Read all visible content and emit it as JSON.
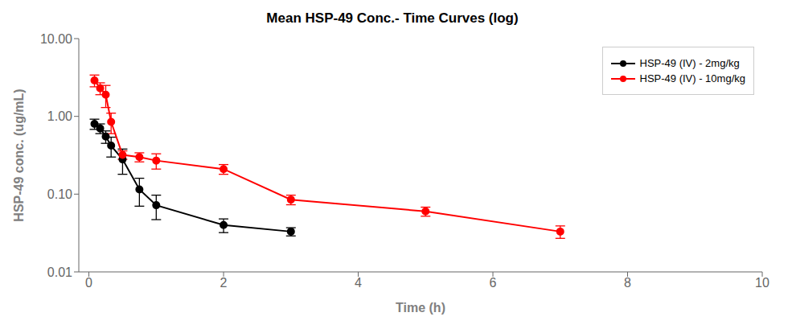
{
  "chart_data": {
    "type": "line",
    "title": "Mean HSP-49 Conc.- Time Curves (log)",
    "xlabel": "Time (h)",
    "ylabel": "HSP-49 conc. (ug/mL)",
    "xlim": [
      -0.15,
      10
    ],
    "ylim": [
      0.01,
      10.0
    ],
    "xticks": [
      0,
      2,
      4,
      6,
      8,
      10
    ],
    "yticks": [
      0.01,
      {
        "value": 0.1,
        "label": "0.10"
      },
      {
        "value": 1,
        "label": "1.00"
      },
      {
        "value": 10,
        "label": "10.00"
      }
    ],
    "log": "y",
    "grid": false,
    "legend": "upper right",
    "series": [
      {
        "name": "HSP-49 (IV) - 2mg/kg",
        "color": "#000000",
        "marker": "circle",
        "line_style": "solid",
        "x": [
          0.083,
          0.167,
          0.25,
          0.33,
          0.5,
          0.75,
          1.0,
          2.0,
          3.0
        ],
        "values": [
          0.8,
          0.7,
          0.55,
          0.42,
          0.28,
          0.115,
          0.072,
          0.04,
          0.033
        ],
        "error_low": [
          0.12,
          0.1,
          0.1,
          0.12,
          0.1,
          0.045,
          0.025,
          0.008,
          0.004
        ],
        "error_high": [
          0.12,
          0.1,
          0.1,
          0.12,
          0.1,
          0.045,
          0.025,
          0.008,
          0.004
        ]
      },
      {
        "name": "HSP-49 (IV) - 10mg/kg",
        "color": "#ff0000",
        "marker": "circle",
        "line_style": "solid",
        "x": [
          0.083,
          0.167,
          0.25,
          0.33,
          0.5,
          0.75,
          1.0,
          2.0,
          3.0,
          5.0,
          7.0
        ],
        "values": [
          2.9,
          2.3,
          1.9,
          0.85,
          0.32,
          0.3,
          0.27,
          0.21,
          0.085,
          0.06,
          0.033
        ],
        "error_low": [
          0.5,
          0.4,
          0.6,
          0.25,
          0.04,
          0.04,
          0.06,
          0.03,
          0.012,
          0.008,
          0.006
        ],
        "error_high": [
          0.5,
          0.4,
          0.6,
          0.25,
          0.04,
          0.04,
          0.06,
          0.03,
          0.012,
          0.008,
          0.006
        ]
      }
    ]
  }
}
